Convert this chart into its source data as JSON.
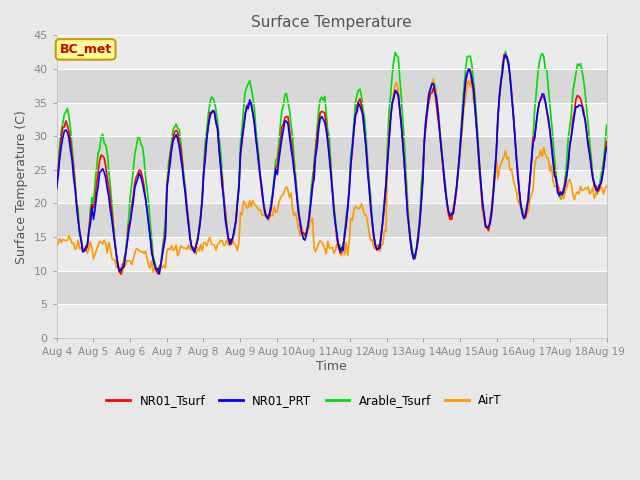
{
  "title": "Surface Temperature",
  "ylabel": "Surface Temperature (C)",
  "xlabel": "Time",
  "annotation": "BC_met",
  "ylim": [
    0,
    45
  ],
  "yticks": [
    0,
    5,
    10,
    15,
    20,
    25,
    30,
    35,
    40,
    45
  ],
  "date_labels": [
    "Aug 4",
    "Aug 5",
    "Aug 6",
    "Aug 7",
    "Aug 8",
    "Aug 9",
    "Aug 10",
    "Aug 11",
    "Aug 12",
    "Aug 13",
    "Aug 14",
    "Aug 15",
    "Aug 16",
    "Aug 17",
    "Aug 18",
    "Aug 19"
  ],
  "line_colors": {
    "NR01_Tsurf": "#ff0000",
    "NR01_PRT": "#0000ff",
    "Arable_Tsurf": "#00dd00",
    "AirT": "#ff9900"
  },
  "bg_color": "#e8e8e8",
  "plot_bg": "#ebebeb",
  "band_color": "#d8d8d8",
  "annotation_bg": "#ffff99",
  "annotation_border": "#cc9900",
  "annotation_text_color": "#cc0000",
  "title_color": "#555555",
  "axis_label_color": "#555555",
  "tick_label_color": "#888888",
  "linewidth": 1.2,
  "peaks": [
    {
      "base": 13,
      "peak_nr01": 32,
      "peak_prt": 31,
      "peak_arable": 34,
      "peak_air": 15
    },
    {
      "base": 10,
      "peak_nr01": 27,
      "peak_prt": 25,
      "peak_arable": 30,
      "peak_air": 14
    },
    {
      "base": 10,
      "peak_nr01": 25,
      "peak_prt": 24,
      "peak_arable": 30,
      "peak_air": 13
    },
    {
      "base": 13,
      "peak_nr01": 31,
      "peak_prt": 30,
      "peak_arable": 32,
      "peak_air": 13
    },
    {
      "base": 14,
      "peak_nr01": 34,
      "peak_prt": 34,
      "peak_arable": 36,
      "peak_air": 14
    },
    {
      "base": 18,
      "peak_nr01": 35,
      "peak_prt": 35,
      "peak_arable": 38,
      "peak_air": 20
    },
    {
      "base": 15,
      "peak_nr01": 33,
      "peak_prt": 32,
      "peak_arable": 36,
      "peak_air": 22
    },
    {
      "base": 13,
      "peak_nr01": 34,
      "peak_prt": 33,
      "peak_arable": 36,
      "peak_air": 14
    },
    {
      "base": 13,
      "peak_nr01": 35,
      "peak_prt": 35,
      "peak_arable": 37,
      "peak_air": 20
    },
    {
      "base": 12,
      "peak_nr01": 37,
      "peak_prt": 37,
      "peak_arable": 42,
      "peak_air": 38
    },
    {
      "base": 18,
      "peak_nr01": 37,
      "peak_prt": 38,
      "peak_arable": 38,
      "peak_air": 38
    },
    {
      "base": 16,
      "peak_nr01": 40,
      "peak_prt": 40,
      "peak_arable": 42,
      "peak_air": 38
    },
    {
      "base": 18,
      "peak_nr01": 42,
      "peak_prt": 42,
      "peak_arable": 42,
      "peak_air": 27
    },
    {
      "base": 21,
      "peak_nr01": 36,
      "peak_prt": 36,
      "peak_arable": 42,
      "peak_air": 28
    },
    {
      "base": 22,
      "peak_nr01": 36,
      "peak_prt": 35,
      "peak_arable": 41,
      "peak_air": 22
    }
  ]
}
